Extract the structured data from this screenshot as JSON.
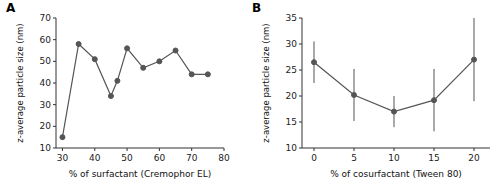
{
  "chart_data": [
    {
      "type": "line",
      "title": "A",
      "x_label": "% of surfactant (Cremophor EL)",
      "y_label": "z-average particle size (nm)",
      "x": [
        30,
        35,
        40,
        45,
        47,
        50,
        55,
        60,
        65,
        70,
        75
      ],
      "series": [
        {
          "values": [
            15,
            58,
            51,
            34,
            41,
            56,
            47,
            50,
            55,
            44,
            44
          ],
          "color": "#555555",
          "marker": "circle"
        }
      ],
      "xlim": [
        28,
        80
      ],
      "ylim": [
        10,
        70
      ],
      "xticks": [
        30,
        40,
        50,
        60,
        70,
        80
      ],
      "yticks": [
        10,
        20,
        30,
        40,
        50,
        60,
        70
      ],
      "grid": false
    },
    {
      "type": "line",
      "title": "B",
      "x_label": "% of cosurfactant (Tween 80)",
      "y_label": "z-average particle size (nm)",
      "x": [
        0,
        5,
        10,
        15,
        20
      ],
      "series": [
        {
          "values": [
            26.5,
            20.2,
            17.0,
            19.2,
            27.0
          ],
          "error_minus": [
            4.0,
            5.0,
            3.0,
            6.0,
            8.0
          ],
          "error_plus": [
            4.0,
            5.0,
            3.0,
            6.0,
            8.0
          ],
          "color": "#555555",
          "marker": "circle"
        }
      ],
      "xlim": [
        -1.5,
        22
      ],
      "ylim": [
        10,
        35
      ],
      "xticks": [
        0,
        5,
        10,
        15,
        20
      ],
      "yticks": [
        10,
        15,
        20,
        25,
        30,
        35
      ],
      "grid": false
    }
  ]
}
